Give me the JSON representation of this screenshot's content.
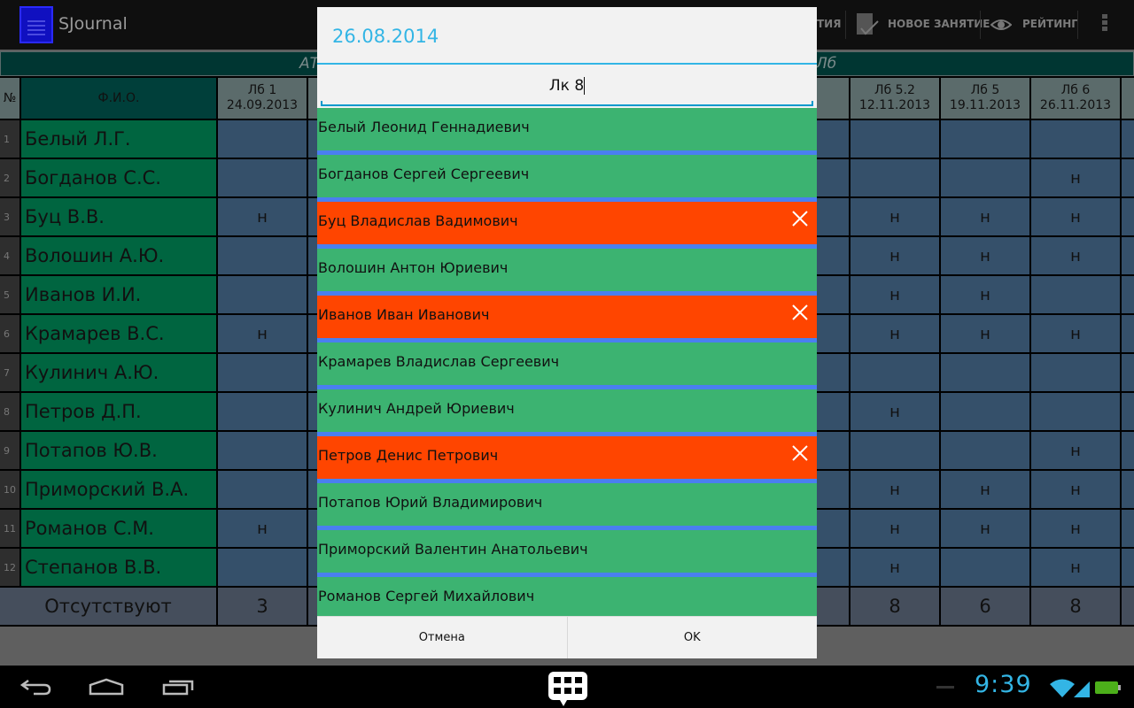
{
  "app": {
    "title": "SJournal"
  },
  "actionbar": {
    "partial_label": "ТИЯ",
    "new_lesson_label": "НОВОЕ ЗАНЯТИЕ",
    "rating_label": "РЕЙТИНГ",
    "icons": [
      "clipboard-icon",
      "check-icon",
      "eye-icon",
      "overflow-menu-icon"
    ]
  },
  "table": {
    "group_header_left": "АТ",
    "group_header_right": "Лб",
    "num_header": "№",
    "name_header": "Ф.И.О.",
    "columns": [
      {
        "title": "Лб 1",
        "date": "24.09.2013"
      },
      {
        "title": "",
        "date": ""
      },
      {
        "title": "Лб 5.2",
        "date": "12.11.2013"
      },
      {
        "title": "Лб 5",
        "date": "19.11.2013"
      },
      {
        "title": "Лб 6",
        "date": "26.11.2013"
      }
    ],
    "rows": [
      {
        "n": "1",
        "name": "Белый Л.Г.",
        "marks": [
          "",
          "",
          "",
          "",
          ""
        ]
      },
      {
        "n": "2",
        "name": "Богданов С.С.",
        "marks": [
          "",
          "",
          "",
          "",
          "н"
        ]
      },
      {
        "n": "3",
        "name": "Буц В.В.",
        "marks": [
          "н",
          "",
          "н",
          "н",
          "н"
        ]
      },
      {
        "n": "4",
        "name": "Волошин А.Ю.",
        "marks": [
          "",
          "",
          "н",
          "н",
          "н"
        ]
      },
      {
        "n": "5",
        "name": "Иванов И.И.",
        "marks": [
          "",
          "",
          "н",
          "н",
          ""
        ]
      },
      {
        "n": "6",
        "name": "Крамарев В.С.",
        "marks": [
          "н",
          "",
          "н",
          "н",
          "н"
        ]
      },
      {
        "n": "7",
        "name": "Кулинич А.Ю.",
        "marks": [
          "",
          "",
          "",
          "",
          ""
        ]
      },
      {
        "n": "8",
        "name": "Петров Д.П.",
        "marks": [
          "",
          "",
          "н",
          "",
          ""
        ]
      },
      {
        "n": "9",
        "name": "Потапов Ю.В.",
        "marks": [
          "",
          "",
          "",
          "",
          "н"
        ]
      },
      {
        "n": "10",
        "name": "Приморский В.А.",
        "marks": [
          "",
          "",
          "н",
          "н",
          "н"
        ]
      },
      {
        "n": "11",
        "name": "Романов С.М.",
        "marks": [
          "н",
          "",
          "н",
          "н",
          "н"
        ]
      },
      {
        "n": "12",
        "name": "Степанов В.В.",
        "marks": [
          "",
          "",
          "н",
          "",
          "н"
        ]
      }
    ],
    "totals_label": "Отсутствуют",
    "totals": [
      "3",
      "",
      "8",
      "6",
      "8"
    ]
  },
  "dialog": {
    "title": "26.08.2014",
    "input_value": "Лк 8",
    "students": [
      {
        "name": "Белый Леонид Геннадиевич",
        "absent": false
      },
      {
        "name": "Богданов Сергей Сергеевич",
        "absent": false
      },
      {
        "name": "Буц Владислав Вадимович",
        "absent": true
      },
      {
        "name": "Волошин Антон Юриевич",
        "absent": false
      },
      {
        "name": "Иванов Иван Иванович",
        "absent": true
      },
      {
        "name": "Крамарев Владислав Сергеевич",
        "absent": false
      },
      {
        "name": "Кулинич Андрей Юриевич",
        "absent": false
      },
      {
        "name": "Петров Денис Петрович",
        "absent": true
      },
      {
        "name": "Потапов Юрий Владимирович",
        "absent": false
      },
      {
        "name": "Приморский Валентин Анатольевич",
        "absent": false
      },
      {
        "name": "Романов Сергей Михайлович",
        "absent": false
      }
    ],
    "cancel_label": "Отмена",
    "ok_label": "OK",
    "colors": {
      "present": "#3cb371",
      "absent": "#ff4500",
      "separator": "#4a7ff0",
      "accent": "#33b5e5"
    }
  },
  "statusbar": {
    "time": "9:39",
    "icons": [
      "back-icon",
      "home-icon",
      "recents-icon",
      "keyboard-icon",
      "wifi-icon",
      "signal-icon",
      "battery-icon"
    ]
  }
}
